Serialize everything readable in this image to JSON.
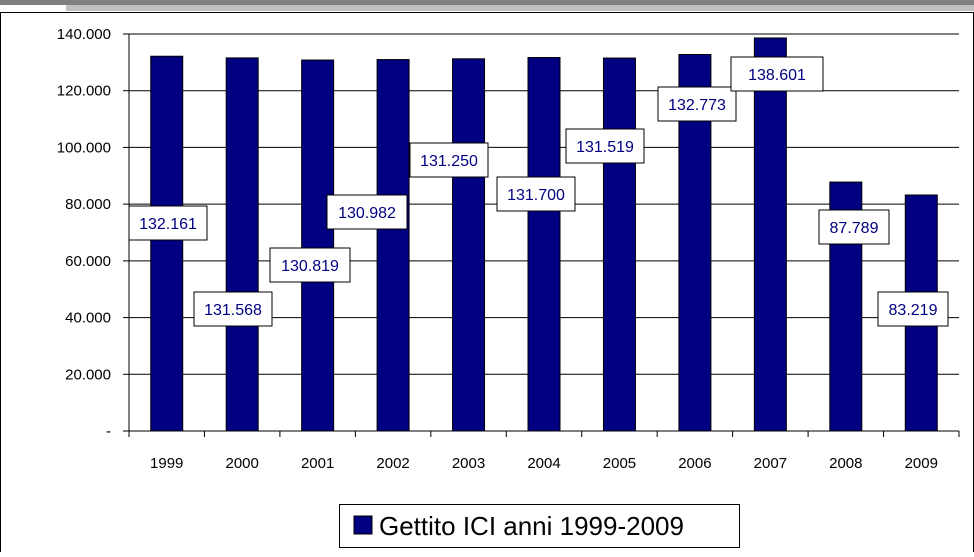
{
  "colors": {
    "bar": "#000080",
    "label_text": "#000080",
    "grid": "#000000",
    "frame": "#000000",
    "top_bar": "#808080"
  },
  "chart_data": {
    "type": "bar",
    "categories": [
      "1999",
      "2000",
      "2001",
      "2002",
      "2003",
      "2004",
      "2005",
      "2006",
      "2007",
      "2008",
      "2009"
    ],
    "series": [
      {
        "name": "Gettito ICI anni 1999-2009",
        "values": [
          132161,
          131568,
          130819,
          130982,
          131250,
          131700,
          131519,
          132773,
          138601,
          87789,
          83219
        ],
        "data_labels": [
          "132.161",
          "131.568",
          "130.819",
          "130.982",
          "131.250",
          "131.700",
          "131.519",
          "132.773",
          "138.601",
          "87.789",
          "83.219"
        ]
      }
    ],
    "ylim": [
      0,
      140000
    ],
    "yticks": [
      0,
      20000,
      40000,
      60000,
      80000,
      100000,
      120000,
      140000
    ],
    "ytick_labels": [
      "-",
      "20.000",
      "40.000",
      "60.000",
      "80.000",
      "100.000",
      "120.000",
      "140.000"
    ],
    "grid": true,
    "legend": {
      "position": "bottom",
      "label": "Gettito ICI anni 1999-2009"
    }
  }
}
